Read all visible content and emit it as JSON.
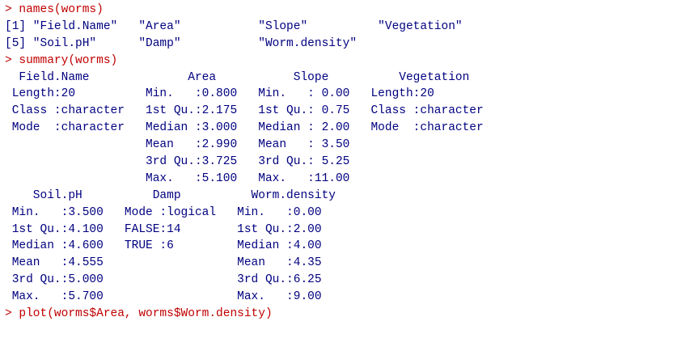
{
  "console": {
    "lines": [
      {
        "type": "command",
        "text": "> names(worms)"
      },
      {
        "type": "output",
        "text": "[1] \"Field.Name\"   \"Area\"           \"Slope\"          \"Vegetation\""
      },
      {
        "type": "output",
        "text": "[5] \"Soil.pH\"      \"Damp\"           \"Worm.density\""
      },
      {
        "type": "command",
        "text": "> summary(worms)"
      },
      {
        "type": "output",
        "text": "  Field.Name              Area           Slope          Vegetation"
      },
      {
        "type": "output",
        "text": " Length:20          Min.   :0.800   Min.   : 0.00   Length:20"
      },
      {
        "type": "output",
        "text": " Class :character   1st Qu.:2.175   1st Qu.: 0.75   Class :character"
      },
      {
        "type": "output",
        "text": " Mode  :character   Median :3.000   Median : 2.00   Mode  :character"
      },
      {
        "type": "output",
        "text": "                    Mean   :2.990   Mean   : 3.50"
      },
      {
        "type": "output",
        "text": "                    3rd Qu.:3.725   3rd Qu.: 5.25"
      },
      {
        "type": "output",
        "text": "                    Max.   :5.100   Max.   :11.00"
      },
      {
        "type": "output",
        "text": "    Soil.pH          Damp          Worm.density"
      },
      {
        "type": "output",
        "text": " Min.   :3.500   Mode :logical   Min.   :0.00"
      },
      {
        "type": "output",
        "text": " 1st Qu.:4.100   FALSE:14        1st Qu.:2.00"
      },
      {
        "type": "output",
        "text": " Median :4.600   TRUE :6         Median :4.00"
      },
      {
        "type": "output",
        "text": " Mean   :4.555                   Mean   :4.35"
      },
      {
        "type": "output",
        "text": " 3rd Qu.:5.000                   3rd Qu.:6.25"
      },
      {
        "type": "output",
        "text": " Max.   :5.700                   Max.   :9.00"
      },
      {
        "type": "command",
        "text": "> plot(worms$Area, worms$Worm.density)"
      }
    ]
  }
}
